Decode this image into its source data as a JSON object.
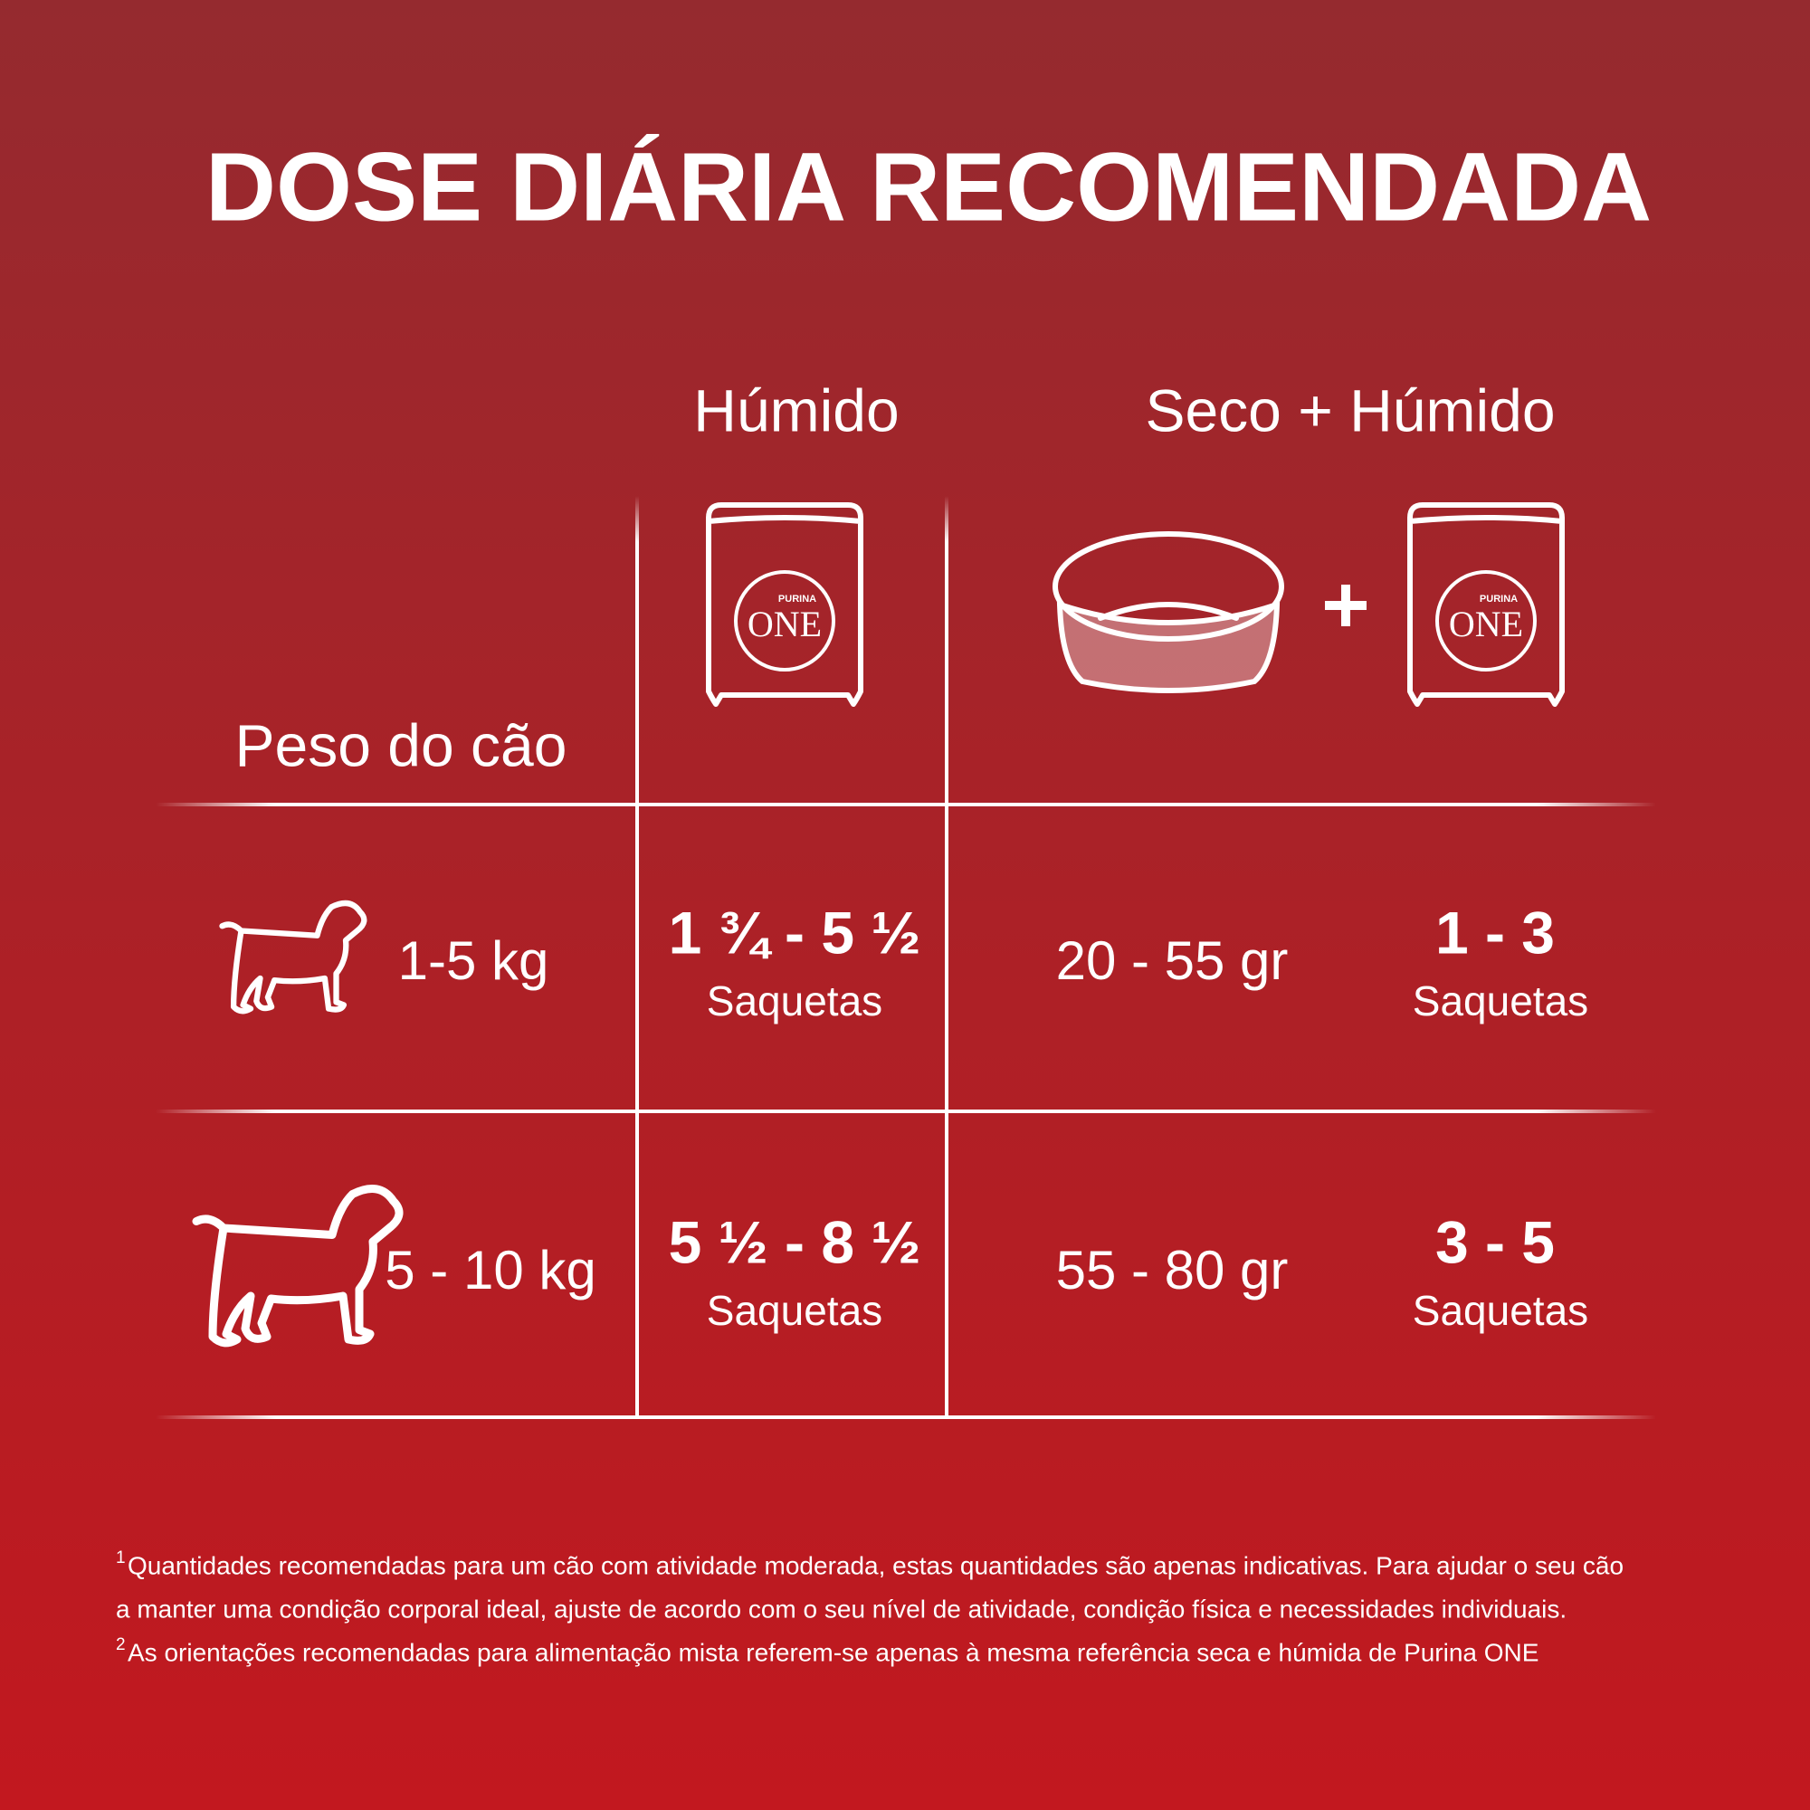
{
  "title": "DOSE DIÁRIA RECOMENDADA",
  "table": {
    "corner": "Peso do cão",
    "columns": [
      "Húmido",
      "Seco + Húmido"
    ],
    "rows": [
      {
        "weight": "1-5 kg",
        "wet": "1 ¾ - 5 ½",
        "wet_unit": "Saquetas",
        "dry": "20 - 55 gr",
        "mixed_wet": "1 - 3",
        "mixed_wet_unit": "Saquetas"
      },
      {
        "weight": "5 - 10 kg",
        "wet": "5 ½ - 8 ½",
        "wet_unit": "Saquetas",
        "dry": "55 - 80 gr",
        "mixed_wet": "3 - 5",
        "mixed_wet_unit": "Saquetas"
      }
    ]
  },
  "logo": {
    "brand": "PURINA",
    "name": "ONE"
  },
  "footnotes": [
    {
      "mark": "1",
      "lines": [
        "Quantidades recomendadas para um cão com atividade moderada, estas quantidades são apenas indicativas. Para ajudar o seu cão",
        "a manter uma condição corporal ideal, ajuste de acordo com o seu nível de atividade, condição física e necessidades individuais."
      ]
    },
    {
      "mark": "2",
      "lines": [
        "As orientações recomendadas para alimentação mista referem-se apenas à mesma referência seca e húmida de Purina ONE"
      ]
    }
  ]
}
